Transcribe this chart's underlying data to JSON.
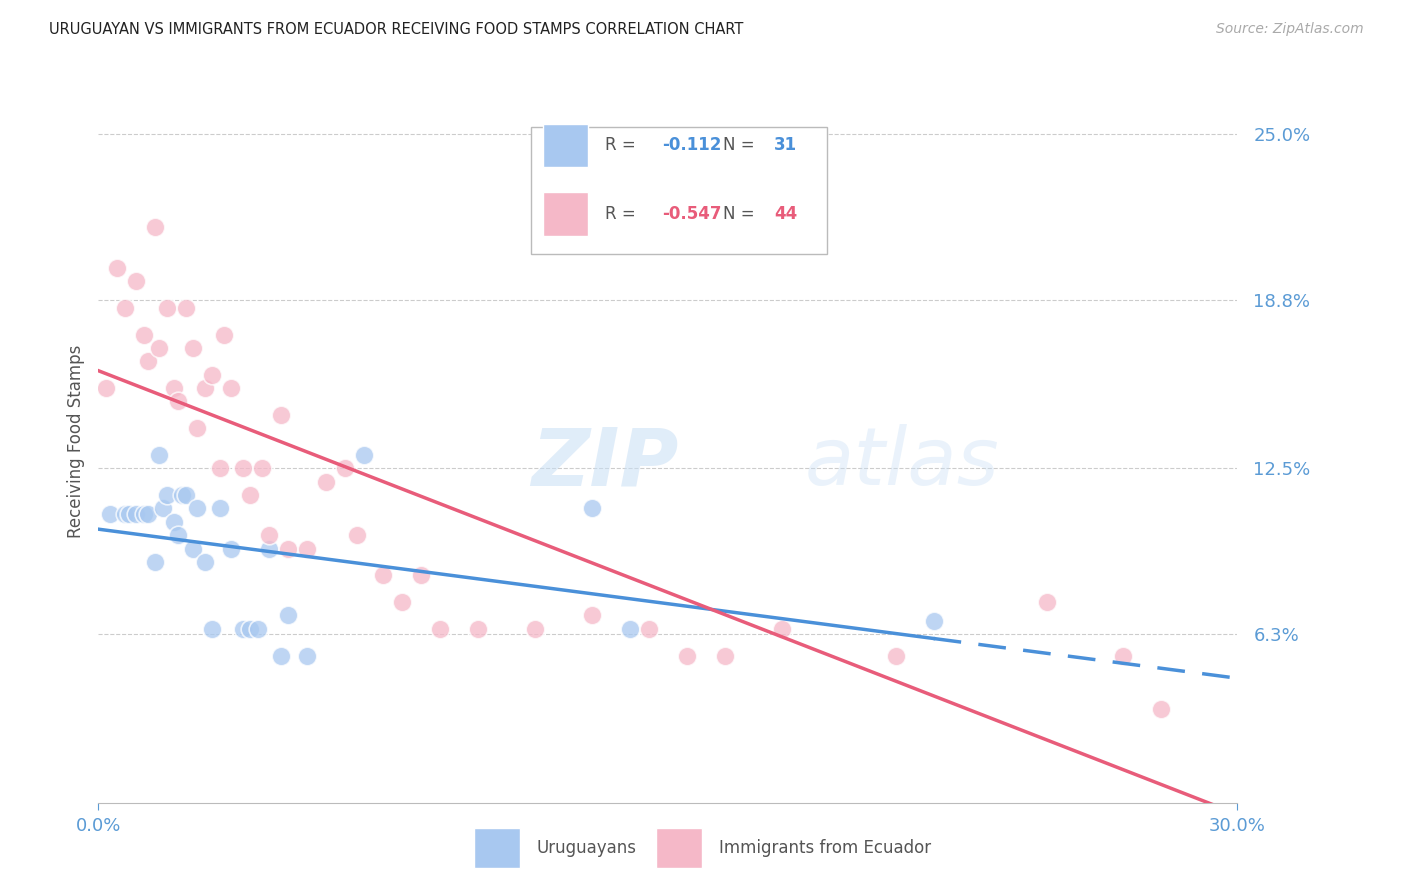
{
  "title": "URUGUAYAN VS IMMIGRANTS FROM ECUADOR RECEIVING FOOD STAMPS CORRELATION CHART",
  "source": "Source: ZipAtlas.com",
  "ylabel": "Receiving Food Stamps",
  "yticks": [
    0.0,
    0.063,
    0.125,
    0.188,
    0.25
  ],
  "ytick_labels": [
    "",
    "6.3%",
    "12.5%",
    "18.8%",
    "25.0%"
  ],
  "xtick_labels": [
    "0.0%",
    "30.0%"
  ],
  "xlim": [
    0.0,
    0.3
  ],
  "ylim": [
    0.0,
    0.27
  ],
  "watermark": "ZIPatlas",
  "blue_color": "#a8c8f0",
  "pink_color": "#f5b8c8",
  "blue_line_color": "#4a90d9",
  "pink_line_color": "#e85c7a",
  "tick_color": "#5b9bd5",
  "grid_color": "#cccccc",
  "uruguayan_x": [
    0.003,
    0.007,
    0.008,
    0.01,
    0.012,
    0.013,
    0.015,
    0.016,
    0.017,
    0.018,
    0.02,
    0.021,
    0.022,
    0.023,
    0.025,
    0.026,
    0.028,
    0.03,
    0.032,
    0.035,
    0.038,
    0.04,
    0.042,
    0.045,
    0.048,
    0.05,
    0.055,
    0.07,
    0.13,
    0.14,
    0.22
  ],
  "uruguayan_y": [
    0.108,
    0.108,
    0.108,
    0.108,
    0.108,
    0.108,
    0.09,
    0.13,
    0.11,
    0.115,
    0.105,
    0.1,
    0.115,
    0.115,
    0.095,
    0.11,
    0.09,
    0.065,
    0.11,
    0.095,
    0.065,
    0.065,
    0.065,
    0.095,
    0.055,
    0.07,
    0.055,
    0.13,
    0.11,
    0.065,
    0.068
  ],
  "ecuador_x": [
    0.002,
    0.005,
    0.007,
    0.01,
    0.012,
    0.013,
    0.015,
    0.016,
    0.018,
    0.02,
    0.021,
    0.023,
    0.025,
    0.026,
    0.028,
    0.03,
    0.032,
    0.033,
    0.035,
    0.038,
    0.04,
    0.043,
    0.045,
    0.048,
    0.05,
    0.055,
    0.06,
    0.065,
    0.068,
    0.075,
    0.08,
    0.085,
    0.09,
    0.1,
    0.115,
    0.13,
    0.145,
    0.155,
    0.165,
    0.18,
    0.21,
    0.25,
    0.27,
    0.28
  ],
  "ecuador_y": [
    0.155,
    0.2,
    0.185,
    0.195,
    0.175,
    0.165,
    0.215,
    0.17,
    0.185,
    0.155,
    0.15,
    0.185,
    0.17,
    0.14,
    0.155,
    0.16,
    0.125,
    0.175,
    0.155,
    0.125,
    0.115,
    0.125,
    0.1,
    0.145,
    0.095,
    0.095,
    0.12,
    0.125,
    0.1,
    0.085,
    0.075,
    0.085,
    0.065,
    0.065,
    0.065,
    0.07,
    0.065,
    0.055,
    0.055,
    0.065,
    0.055,
    0.075,
    0.055,
    0.035
  ]
}
